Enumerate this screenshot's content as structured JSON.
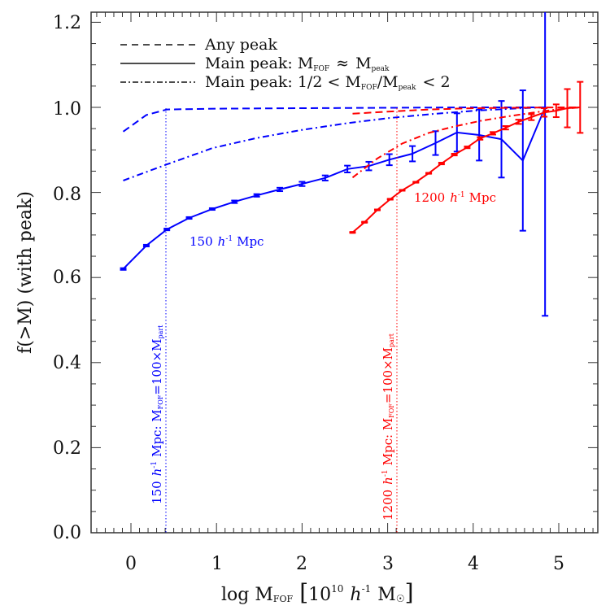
{
  "chart_data": {
    "type": "line",
    "title": "",
    "xlabel": "log M_FOF [10^10 h^-1 M_sun]",
    "ylabel": "f(>M) (with peak)",
    "xlim": [
      -0.47,
      5.46
    ],
    "ylim": [
      0.0,
      1.22
    ],
    "x_ticks": [
      "0",
      "1",
      "2",
      "3",
      "4",
      "5"
    ],
    "y_ticks": [
      "0.0",
      "0.2",
      "0.4",
      "0.6",
      "0.8",
      "1.0",
      "1.2"
    ],
    "grid": false,
    "legend_position": "upper left",
    "legend": [
      {
        "style": "dashed",
        "label": "Any peak"
      },
      {
        "style": "solid",
        "label": "Main peak: M_FOF ≈ M_peak"
      },
      {
        "style": "dash-dot",
        "label": "Main peak: 1/2 < M_FOF/M_peak < 2"
      }
    ],
    "series": [
      {
        "name": "150 h^-1 Mpc, Main peak: M_FOF ≈ M_peak",
        "color": "#0000ff",
        "style": "solid",
        "x": [
          -0.09,
          0.18,
          0.42,
          0.68,
          0.95,
          1.21,
          1.47,
          1.74,
          2.0,
          2.27,
          2.53,
          2.78,
          3.02,
          3.29,
          3.56,
          3.81,
          4.07,
          4.33,
          4.58,
          4.84
        ],
        "y": [
          0.62,
          0.675,
          0.713,
          0.74,
          0.761,
          0.778,
          0.793,
          0.807,
          0.82,
          0.834,
          0.855,
          0.862,
          0.877,
          0.891,
          0.916,
          0.941,
          0.935,
          0.925,
          0.875,
          1.0
        ],
        "yerr": [
          0.002,
          0.002,
          0.002,
          0.002,
          0.002,
          0.003,
          0.003,
          0.004,
          0.005,
          0.006,
          0.008,
          0.01,
          0.013,
          0.018,
          0.028,
          0.045,
          0.06,
          0.09,
          0.165,
          0.49
        ]
      },
      {
        "name": "150 h^-1 Mpc, Any peak",
        "color": "#0000ff",
        "style": "dashed",
        "x": [
          -0.09,
          0.18,
          0.42,
          1.0,
          2.0,
          3.0,
          4.0,
          4.84
        ],
        "y": [
          0.943,
          0.982,
          0.995,
          0.997,
          0.998,
          0.999,
          1.0,
          1.0
        ]
      },
      {
        "name": "150 h^-1 Mpc, Main peak: 1/2 < M_FOF/M_peak < 2",
        "color": "#0000ff",
        "style": "dash-dot",
        "x": [
          -0.09,
          0.42,
          0.95,
          1.47,
          2.0,
          2.53,
          3.02,
          3.56,
          4.07,
          4.58,
          4.84
        ],
        "y": [
          0.828,
          0.866,
          0.904,
          0.928,
          0.947,
          0.963,
          0.975,
          0.985,
          0.993,
          0.998,
          1.0
        ]
      },
      {
        "name": "1200 h^-1 Mpc, Main peak: M_FOF ≈ M_peak",
        "color": "#ff0000",
        "style": "solid",
        "x": [
          2.59,
          2.73,
          2.88,
          3.03,
          3.17,
          3.33,
          3.48,
          3.63,
          3.78,
          3.93,
          4.08,
          4.23,
          4.38,
          4.53,
          4.68,
          4.83,
          4.97,
          5.1,
          5.25
        ],
        "y": [
          0.706,
          0.73,
          0.759,
          0.784,
          0.805,
          0.824,
          0.845,
          0.868,
          0.889,
          0.906,
          0.927,
          0.939,
          0.952,
          0.966,
          0.977,
          0.988,
          0.992,
          0.998,
          1.0
        ],
        "yerr": [
          0.001,
          0.001,
          0.001,
          0.001,
          0.001,
          0.001,
          0.001,
          0.002,
          0.002,
          0.002,
          0.003,
          0.003,
          0.004,
          0.005,
          0.007,
          0.01,
          0.015,
          0.045,
          0.06
        ]
      },
      {
        "name": "1200 h^-1 Mpc, Any peak",
        "color": "#ff0000",
        "style": "dashed",
        "x": [
          2.59,
          3.0,
          3.5,
          4.0,
          4.5,
          5.0,
          5.25
        ],
        "y": [
          0.985,
          0.99,
          0.995,
          0.998,
          0.999,
          1.0,
          1.0
        ]
      },
      {
        "name": "1200 h^-1 Mpc, Main peak: 1/2 < M_FOF/M_peak < 2",
        "color": "#ff0000",
        "style": "dash-dot",
        "x": [
          2.59,
          2.88,
          3.17,
          3.48,
          3.78,
          4.08,
          4.38,
          4.68,
          4.97,
          5.25
        ],
        "y": [
          0.835,
          0.88,
          0.915,
          0.94,
          0.955,
          0.968,
          0.978,
          0.987,
          0.995,
          1.0
        ]
      }
    ],
    "annotations": [
      {
        "text": "150 h^-1 Mpc",
        "color": "#0000ff",
        "x": 0.7,
        "y": 0.68
      },
      {
        "text": "1200 h^-1 Mpc",
        "color": "#ff0000",
        "x": 3.3,
        "y": 0.77
      },
      {
        "text": "150 h^-1 Mpc: M_FOF = 100×M_part",
        "color": "#0000ff",
        "orientation": "vertical",
        "vline_x": 0.41
      },
      {
        "text": "1200 h^-1 Mpc: M_FOF = 100×M_part",
        "color": "#ff0000",
        "orientation": "vertical",
        "vline_x": 3.11
      }
    ]
  },
  "labels": {
    "ylabel_main": "f(>M) (with peak)",
    "xlabel_log": "log M",
    "xlabel_sub": "FOF",
    "xlabel_bracket_open": "[",
    "xlabel_ten": "10",
    "xlabel_exp": "10",
    "xlabel_h": "h",
    "xlabel_hexp": "-1",
    "xlabel_msun": "M",
    "xlabel_bracket_close": "]",
    "legend_any": "Any peak",
    "legend_main_prefix": "Main peak: M",
    "legend_fof": "FOF",
    "legend_approx": "≈",
    "legend_m": "M",
    "legend_peak": "peak",
    "legend_ratio_prefix": "Main peak: 1/2 < M",
    "legend_ratio_mid": "/M",
    "legend_ratio_suffix": "< 2",
    "anno_150_num": "150",
    "anno_1200_num": "1200",
    "anno_h": "h",
    "anno_hexp": "-1",
    "anno_mpc": "Mpc",
    "vanno_150": "150",
    "vanno_1200": "1200",
    "vanno_mid": "Mpc: M",
    "vanno_eq": "=100×M",
    "vanno_part": "part",
    "x_ticks": [
      "0",
      "1",
      "2",
      "3",
      "4",
      "5"
    ],
    "y_ticks": [
      "0.0",
      "0.2",
      "0.4",
      "0.6",
      "0.8",
      "1.0",
      "1.2"
    ]
  },
  "colors": {
    "blue": "#0000ff",
    "red": "#ff0000",
    "axis": "#222222"
  }
}
